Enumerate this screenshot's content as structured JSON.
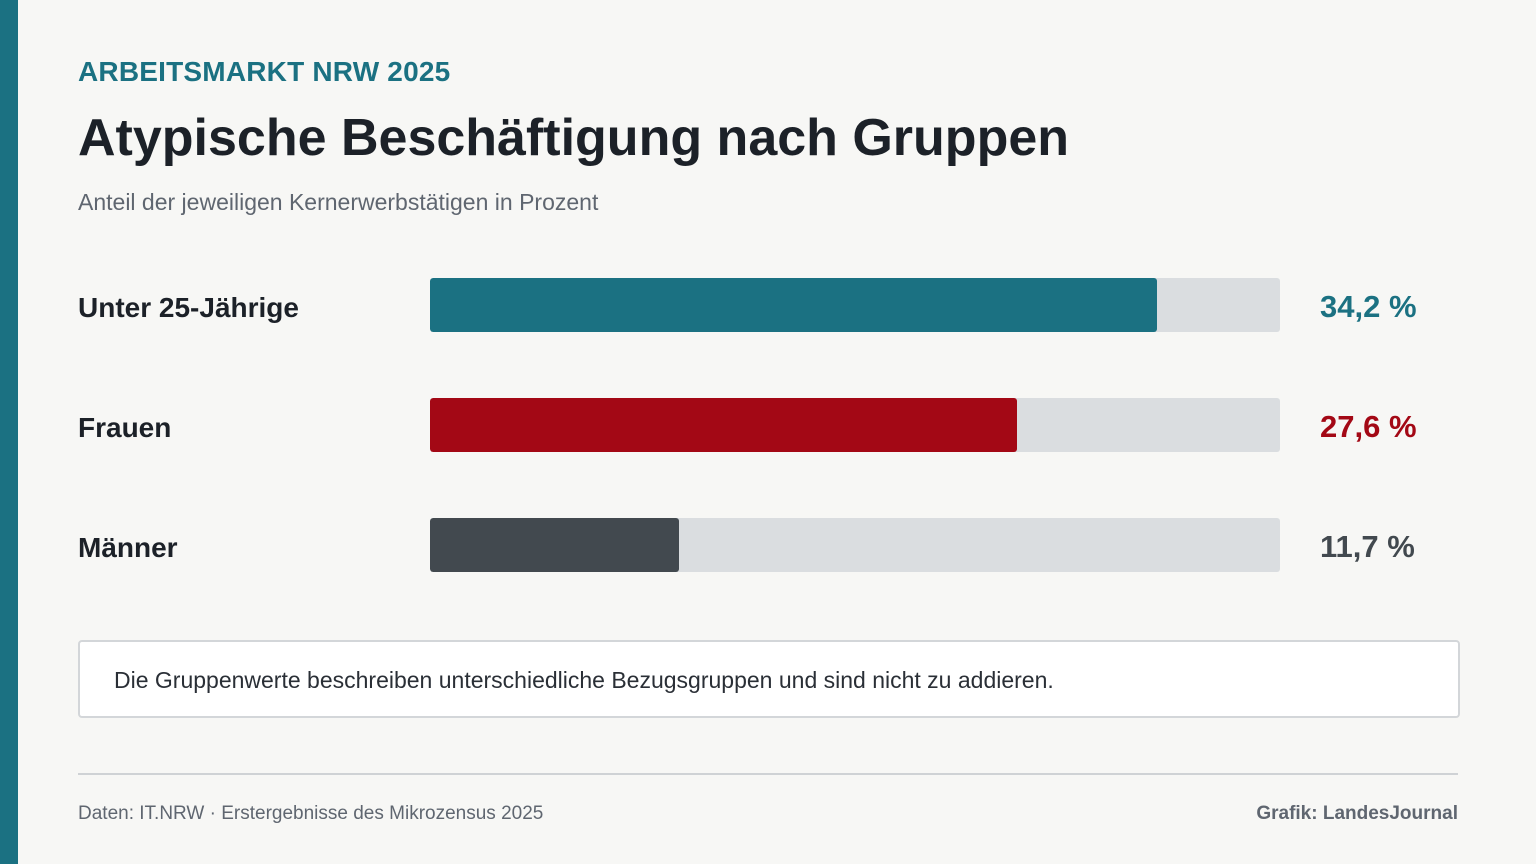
{
  "kicker": "ARBEITSMARKT NRW 2025",
  "title": "Atypische Beschäftigung nach Gruppen",
  "subtitle": "Anteil der jeweiligen Kernerwerbstätigen in Prozent",
  "chart_data": {
    "type": "bar",
    "orientation": "horizontal",
    "categories": [
      "Unter 25-Jährige",
      "Frauen",
      "Männer"
    ],
    "values": [
      34.2,
      27.6,
      11.7
    ],
    "value_labels": [
      "34,2 %",
      "27,6 %",
      "11,7 %"
    ],
    "colors": [
      "#1b7182",
      "#a30815",
      "#42494f"
    ],
    "value_label_colors": [
      "#1b7182",
      "#a30815",
      "#42494f"
    ],
    "track_color": "#dadde0",
    "xlim": [
      0,
      40
    ],
    "grid": false,
    "legend": "none"
  },
  "note": "Die Gruppenwerte beschreiben unterschiedliche Bezugsgruppen und sind nicht zu addieren.",
  "footer": {
    "source": "Daten: IT.NRW · Erstergebnisse des Mikrozensus 2025",
    "credit": "Grafik: LandesJournal"
  },
  "colors": {
    "accent": "#1b7182",
    "background": "#f7f7f5"
  }
}
